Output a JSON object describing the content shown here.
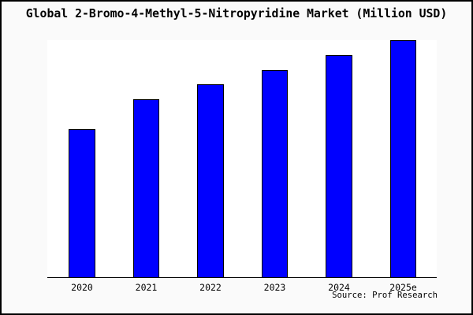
{
  "chart": {
    "title": "Global 2-Bromo-4-Methyl-5-Nitropyridine Market (Million USD)",
    "source": "Source: Prof Research"
  },
  "chart_data": {
    "type": "bar",
    "title": "Global 2-Bromo-4-Methyl-5-Nitropyridine Market (Million USD)",
    "categories": [
      "2020",
      "2021",
      "2022",
      "2023",
      "2024",
      "2025e"
    ],
    "values": [
      5.0,
      6.0,
      6.5,
      7.0,
      7.5,
      8.0
    ],
    "xlabel": "",
    "ylabel": "",
    "ylim": [
      0,
      8
    ],
    "grid": false,
    "legend": false,
    "annotations": [
      "Source: Prof Research"
    ],
    "colors": {
      "bar_fill": "#0000ff",
      "bar_border": "#000000",
      "canvas_background": "#fafafa",
      "plot_background": "#ffffff",
      "axis_line": "#000000",
      "text": "#000000"
    }
  }
}
